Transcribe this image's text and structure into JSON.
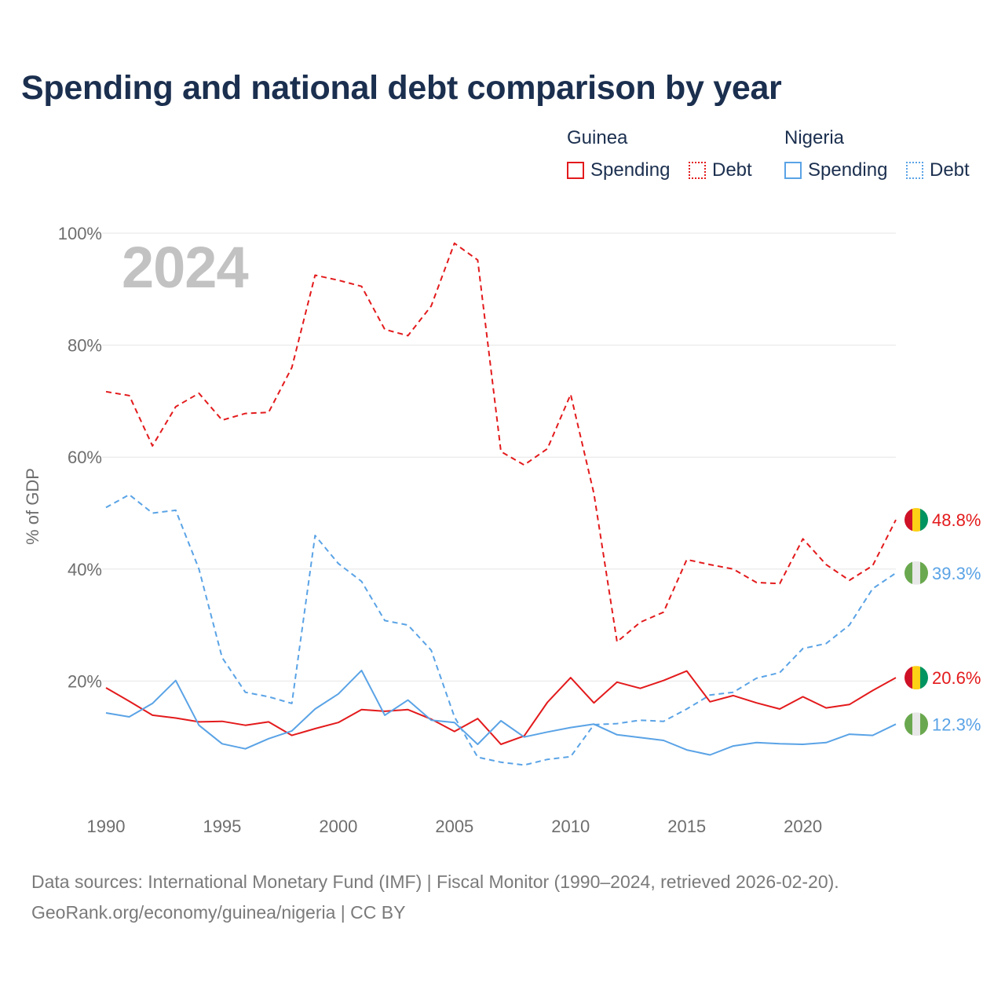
{
  "chart_data": {
    "type": "line",
    "title": "Spending and national debt comparison by year",
    "year_label": "2024",
    "ylabel": "% of GDP",
    "xlabel": "",
    "ylim": [
      0,
      100
    ],
    "xlim": [
      1990,
      2024
    ],
    "y_ticks": [
      20,
      40,
      60,
      80,
      100
    ],
    "y_tick_labels": [
      "20%",
      "40%",
      "60%",
      "80%",
      "100%"
    ],
    "x_ticks": [
      1990,
      1995,
      2000,
      2005,
      2010,
      2015,
      2020
    ],
    "x_tick_labels": [
      "1990",
      "1995",
      "2000",
      "2005",
      "2010",
      "2015",
      "2020"
    ],
    "grid": true,
    "legend": {
      "placement": "top-right",
      "groups": [
        {
          "name": "Guinea",
          "entries": [
            "Spending",
            "Debt"
          ]
        },
        {
          "name": "Nigeria",
          "entries": [
            "Spending",
            "Debt"
          ]
        }
      ]
    },
    "x": [
      1990,
      1991,
      1992,
      1993,
      1994,
      1995,
      1996,
      1997,
      1998,
      1999,
      2000,
      2001,
      2002,
      2003,
      2004,
      2005,
      2006,
      2007,
      2008,
      2009,
      2010,
      2011,
      2012,
      2013,
      2014,
      2015,
      2016,
      2017,
      2018,
      2019,
      2020,
      2021,
      2022,
      2023,
      2024
    ],
    "series": [
      {
        "name": "Guinea Debt",
        "country": "Guinea",
        "metric": "Debt",
        "color": "#e31a1c",
        "style": "dashed",
        "end_label": "48.8%",
        "values": [
          71.7,
          71.0,
          62.0,
          69.0,
          71.4,
          66.6,
          67.8,
          68.0,
          76.0,
          92.5,
          91.6,
          90.5,
          82.8,
          81.7,
          87.0,
          98.2,
          95.2,
          61.0,
          58.6,
          61.5,
          71.2,
          53.5,
          27.0,
          30.5,
          32.3,
          41.7,
          40.8,
          40.0,
          37.6,
          37.4,
          45.4,
          40.8,
          38.0,
          40.6,
          48.8
        ]
      },
      {
        "name": "Nigeria Debt",
        "country": "Nigeria",
        "metric": "Debt",
        "color": "#5aa3e6",
        "style": "dashed",
        "end_label": "39.3%",
        "values": [
          51.0,
          53.3,
          50.0,
          50.5,
          40.0,
          24.2,
          18.0,
          17.2,
          16.0,
          46.0,
          41.0,
          37.8,
          30.8,
          30.0,
          25.5,
          13.6,
          6.4,
          5.5,
          5.0,
          6.0,
          6.5,
          12.2,
          12.4,
          13.0,
          12.8,
          15.0,
          17.5,
          18.0,
          20.5,
          21.5,
          25.8,
          26.7,
          30.0,
          36.5,
          39.3
        ]
      },
      {
        "name": "Guinea Spending",
        "country": "Guinea",
        "metric": "Spending",
        "color": "#e31a1c",
        "style": "solid",
        "end_label": "20.6%",
        "values": [
          18.8,
          16.4,
          13.9,
          13.4,
          12.7,
          12.8,
          12.1,
          12.7,
          10.3,
          11.5,
          12.6,
          14.9,
          14.6,
          14.9,
          13.2,
          11.0,
          13.3,
          8.7,
          10.2,
          16.2,
          20.6,
          16.1,
          19.8,
          18.7,
          20.1,
          21.8,
          16.3,
          17.4,
          16.1,
          15.0,
          17.2,
          15.2,
          15.8,
          18.3,
          20.6
        ]
      },
      {
        "name": "Nigeria Spending",
        "country": "Nigeria",
        "metric": "Spending",
        "color": "#5aa3e6",
        "style": "solid",
        "end_label": "12.3%",
        "values": [
          14.3,
          13.6,
          16.0,
          20.1,
          12.1,
          8.8,
          7.9,
          9.7,
          11.1,
          15.0,
          17.7,
          21.9,
          13.9,
          16.6,
          13.0,
          12.6,
          8.7,
          12.9,
          10.0,
          10.9,
          11.7,
          12.3,
          10.4,
          9.9,
          9.4,
          7.7,
          6.8,
          8.4,
          9.0,
          8.8,
          8.7,
          9.0,
          10.5,
          10.3,
          12.3
        ]
      }
    ],
    "source_line1": "Data sources: International Monetary Fund (IMF) | Fiscal Monitor (1990–2024, retrieved 2026-02-20).",
    "source_line2": "GeoRank.org/economy/guinea/nigeria | CC BY",
    "colors": {
      "guinea": "#e31a1c",
      "nigeria": "#5aa3e6",
      "grid": "#e6e6e6",
      "title": "#1b2f4f",
      "flag_guinea": [
        "#ce1126",
        "#fcd116",
        "#009460"
      ],
      "flag_nigeria": [
        "#6aa84f",
        "#e8e8e8",
        "#6aa84f"
      ]
    }
  }
}
